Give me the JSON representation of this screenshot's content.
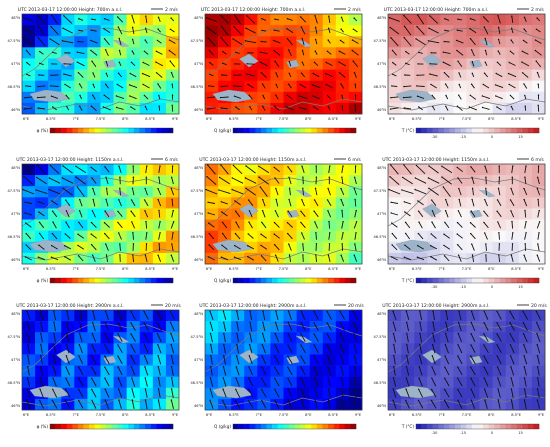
{
  "figure": {
    "rows": [
      {
        "height_label": "700m a.s.l.",
        "wind_ref": "2 m/s"
      },
      {
        "height_label": "1150m a.s.l.",
        "wind_ref": "6 m/s"
      },
      {
        "height_label": "2900m a.s.l.",
        "wind_ref": "20 m/s"
      }
    ],
    "utc_label": "UTC",
    "timestamp": "2013-03-17 12:00:00",
    "height_prefix": "Height:",
    "x_ticks": [
      "6°E",
      "6.5°E",
      "7°E",
      "7.5°E",
      "8°E",
      "8.5°E",
      "9°E"
    ],
    "y_ticks": [
      "48°N",
      "47.5°N",
      "47°N",
      "46.5°N",
      "46°N"
    ],
    "columns": [
      {
        "variable": "RH",
        "colorbar_label": "φ (%)",
        "colorbar_ticks": [],
        "colormap": "jet_reversed"
      },
      {
        "variable": "specific humidity",
        "colorbar_label": "Q (g/kg)",
        "colorbar_ticks": [],
        "colormap": "jet"
      },
      {
        "variable": "temperature",
        "colorbar_label": "T (°C)",
        "colorbar_ticks": [
          "-30",
          "-15",
          "0",
          "15"
        ],
        "colormap": "bwr"
      }
    ],
    "colors": {
      "lake": "#9db4c8",
      "border": "#7a7a7a",
      "arrow": "#111111",
      "frame": "#333333"
    }
  }
}
